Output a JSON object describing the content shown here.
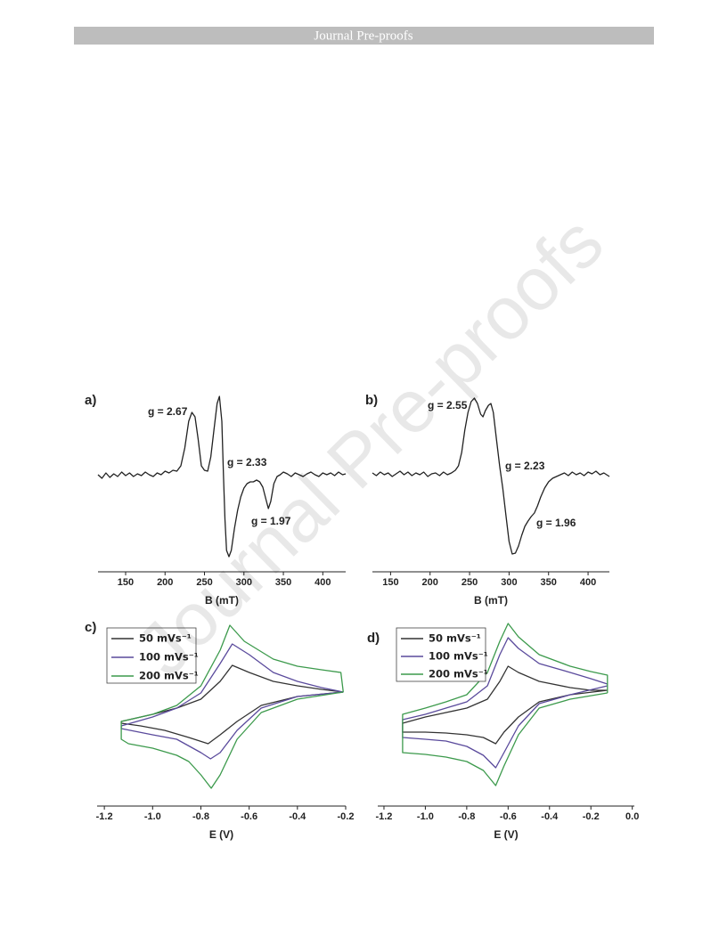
{
  "header": "Journal Pre-proofs",
  "watermark": "Journal Pre-proofs",
  "chart_data": [
    {
      "type": "line",
      "label": "a)",
      "xlabel": "B (mT)",
      "xlim": [
        115,
        429
      ],
      "xticks": [
        150,
        200,
        250,
        300,
        350,
        400
      ],
      "ylim": [
        -110,
        100
      ],
      "annotations": [
        "g = 2.67",
        "g = 2.33",
        "g = 1.97"
      ],
      "series": [
        {
          "color": "#222222",
          "x": [
            115,
            120,
            125,
            130,
            135,
            140,
            145,
            150,
            155,
            160,
            165,
            170,
            175,
            180,
            185,
            190,
            195,
            200,
            205,
            210,
            215,
            220,
            225,
            230,
            234,
            238,
            242,
            246,
            250,
            254,
            258,
            262,
            266,
            269,
            272,
            274,
            276,
            278,
            281,
            284,
            288,
            292,
            296,
            300,
            304,
            308,
            312,
            316,
            320,
            324,
            328,
            331,
            334,
            338,
            342,
            346,
            350,
            355,
            360,
            365,
            370,
            375,
            380,
            385,
            390,
            395,
            400,
            405,
            410,
            415,
            420,
            425,
            429
          ],
          "values": [
            0,
            -4,
            2,
            -3,
            1,
            -2,
            3,
            -1,
            2,
            -2,
            1,
            -1,
            3,
            0,
            -2,
            2,
            0,
            4,
            2,
            5,
            4,
            10,
            30,
            60,
            70,
            65,
            40,
            10,
            5,
            4,
            20,
            50,
            80,
            88,
            60,
            0,
            -50,
            -85,
            -92,
            -85,
            -60,
            -40,
            -25,
            -15,
            -10,
            -8,
            -8,
            -6,
            -8,
            -14,
            -28,
            -38,
            -30,
            -10,
            -2,
            0,
            3,
            1,
            -2,
            2,
            0,
            -2,
            1,
            3,
            0,
            -2,
            2,
            0,
            2,
            -1,
            3,
            0,
            1
          ]
        }
      ]
    },
    {
      "type": "line",
      "label": "b)",
      "xlabel": "B (mT)",
      "xlim": [
        127,
        427
      ],
      "xticks": [
        150,
        200,
        250,
        300,
        350,
        400
      ],
      "ylim": [
        -110,
        100
      ],
      "annotations": [
        "g = 2.55",
        "g = 2.23",
        "g = 1.96"
      ],
      "series": [
        {
          "color": "#222222",
          "x": [
            127,
            132,
            137,
            142,
            147,
            152,
            157,
            162,
            167,
            172,
            177,
            182,
            187,
            192,
            197,
            202,
            207,
            212,
            217,
            222,
            227,
            232,
            236,
            240,
            244,
            248,
            252,
            256,
            260,
            264,
            267,
            270,
            274,
            277,
            280,
            284,
            288,
            292,
            296,
            300,
            304,
            308,
            312,
            316,
            320,
            324,
            328,
            332,
            336,
            340,
            345,
            350,
            355,
            360,
            365,
            370,
            375,
            380,
            385,
            390,
            395,
            400,
            405,
            410,
            415,
            420,
            427
          ],
          "values": [
            2,
            -1,
            3,
            0,
            2,
            -2,
            1,
            4,
            0,
            3,
            -1,
            2,
            0,
            3,
            -2,
            1,
            2,
            -1,
            3,
            0,
            2,
            5,
            10,
            25,
            50,
            70,
            82,
            86,
            80,
            68,
            65,
            72,
            78,
            80,
            70,
            40,
            10,
            -15,
            -45,
            -75,
            -89,
            -88,
            -80,
            -68,
            -58,
            -52,
            -47,
            -43,
            -35,
            -25,
            -15,
            -8,
            -4,
            -2,
            0,
            2,
            -1,
            3,
            0,
            2,
            -1,
            3,
            1,
            4,
            0,
            2,
            -2
          ]
        }
      ]
    },
    {
      "type": "line",
      "label": "c)",
      "xlabel": "E (V)",
      "xlim": [
        -1.23,
        -0.2
      ],
      "ylim": [
        -105,
        110
      ],
      "xticks": [
        -1.2,
        {
          "value": -1,
          "label": "-1.0"
        },
        -0.8,
        -0.6,
        -0.4,
        -0.2
      ],
      "series": [
        {
          "name": "50 mVs⁻¹",
          "color": "#333333",
          "x": [
            -0.21,
            -0.4,
            -0.55,
            -0.65,
            -0.72,
            -0.77,
            -0.85,
            -0.95,
            -1.05,
            -1.13,
            -1.13,
            -1,
            -0.9,
            -0.8,
            -0.72,
            -0.67,
            -0.6,
            -0.5,
            -0.4,
            -0.3,
            -0.21
          ],
          "values": [
            23,
            18,
            8,
            -10,
            -25,
            -35,
            -28,
            -20,
            -15,
            -12,
            -10,
            -2,
            5,
            15,
            35,
            53,
            45,
            35,
            30,
            26,
            23
          ]
        },
        {
          "name": "100 mVs⁻¹",
          "color": "#5a4a9c",
          "x": [
            -0.21,
            -0.4,
            -0.55,
            -0.65,
            -0.72,
            -0.76,
            -0.8,
            -0.9,
            -1,
            -1.13,
            -1.13,
            -1,
            -0.9,
            -0.8,
            -0.72,
            -0.67,
            -0.6,
            -0.5,
            -0.4,
            -0.3,
            -0.21
          ],
          "values": [
            23,
            18,
            5,
            -20,
            -45,
            -52,
            -45,
            -30,
            -25,
            -18,
            -15,
            -5,
            5,
            22,
            55,
            77,
            65,
            45,
            35,
            28,
            23
          ]
        },
        {
          "name": "200 mVs⁻¹",
          "color": "#3c9a4c",
          "x": [
            -0.21,
            -0.4,
            -0.55,
            -0.65,
            -0.72,
            -0.757,
            -0.8,
            -0.85,
            -0.9,
            -1,
            -1.1,
            -1.13,
            -1.13,
            -1,
            -0.9,
            -0.8,
            -0.72,
            -0.68,
            -0.62,
            -0.5,
            -0.4,
            -0.3,
            -0.22,
            -0.21
          ],
          "values": [
            23,
            15,
            0,
            -30,
            -70,
            -85,
            -70,
            -55,
            -48,
            -40,
            -35,
            -30,
            -10,
            -2,
            8,
            30,
            70,
            98,
            80,
            60,
            52,
            48,
            45,
            23
          ]
        }
      ]
    },
    {
      "type": "line",
      "label": "d)",
      "xlabel": "E (V)",
      "xlim": [
        -1.23,
        0.01
      ],
      "ylim": [
        -105,
        110
      ],
      "xticks": [
        -1.2,
        {
          "value": -1,
          "label": "-1.0"
        },
        -0.8,
        -0.6,
        -0.4,
        -0.2,
        {
          "value": 0,
          "label": "0.0"
        }
      ],
      "series": [
        {
          "name": "50 mVs⁻¹",
          "color": "#333333",
          "x": [
            -0.12,
            -0.3,
            -0.45,
            -0.55,
            -0.62,
            -0.66,
            -0.72,
            -0.8,
            -0.9,
            -1,
            -1.11,
            -1.11,
            -1,
            -0.9,
            -0.8,
            -0.7,
            -0.64,
            -0.6,
            -0.55,
            -0.45,
            -0.3,
            -0.2,
            -0.12
          ],
          "values": [
            25,
            20,
            12,
            -5,
            -22,
            -35,
            -28,
            -25,
            -23,
            -22,
            -22,
            -12,
            -5,
            0,
            5,
            15,
            35,
            52,
            45,
            35,
            28,
            25,
            25
          ]
        },
        {
          "name": "100 mVs⁻¹",
          "color": "#5a4a9c",
          "x": [
            -0.12,
            -0.3,
            -0.45,
            -0.55,
            -0.62,
            -0.66,
            -0.72,
            -0.8,
            -0.9,
            -1,
            -1.11,
            -1.11,
            -1,
            -0.9,
            -0.8,
            -0.7,
            -0.64,
            -0.6,
            -0.55,
            -0.45,
            -0.3,
            -0.2,
            -0.12
          ],
          "values": [
            30,
            20,
            10,
            -15,
            -45,
            -62,
            -48,
            -38,
            -32,
            -30,
            -28,
            -8,
            -2,
            5,
            12,
            30,
            65,
            84,
            72,
            55,
            45,
            38,
            32
          ]
        },
        {
          "name": "200 mVs⁻¹",
          "color": "#3c9a4c",
          "x": [
            -0.12,
            -0.3,
            -0.45,
            -0.55,
            -0.62,
            -0.66,
            -0.72,
            -0.8,
            -0.9,
            -1,
            -1.11,
            -1.11,
            -1,
            -0.9,
            -0.8,
            -0.7,
            -0.64,
            -0.6,
            -0.55,
            -0.45,
            -0.3,
            -0.2,
            -0.12,
            -0.12
          ],
          "values": [
            22,
            15,
            5,
            -25,
            -60,
            -82,
            -65,
            -55,
            -50,
            -47,
            -45,
            -2,
            5,
            12,
            20,
            45,
            80,
            100,
            85,
            65,
            52,
            46,
            42,
            22
          ]
        }
      ]
    }
  ]
}
